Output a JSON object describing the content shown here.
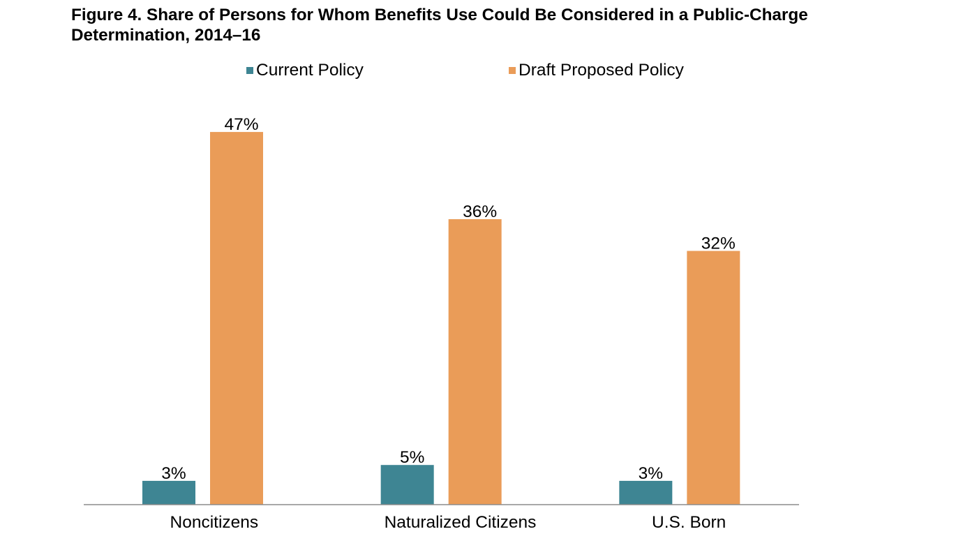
{
  "chart_data": {
    "type": "bar",
    "title": "Figure 4. Share of Persons for Whom Benefits Use Could Be Considered in a Public-Charge Determination, 2014–16",
    "xlabel": "",
    "ylabel": "",
    "categories": [
      "Noncitizens",
      "Naturalized Citizens",
      "U.S. Born"
    ],
    "series": [
      {
        "name": "Current Policy",
        "values": [
          3,
          5,
          3
        ],
        "labels": [
          "3%",
          "5%",
          "3%"
        ],
        "color": "#3E8593"
      },
      {
        "name": "Draft Proposed Policy",
        "values": [
          47,
          36,
          32
        ],
        "labels": [
          "47%",
          "36%",
          "32%"
        ],
        "color": "#EA9C58"
      }
    ],
    "unit": "%",
    "grid": false,
    "legend_position": "top"
  }
}
